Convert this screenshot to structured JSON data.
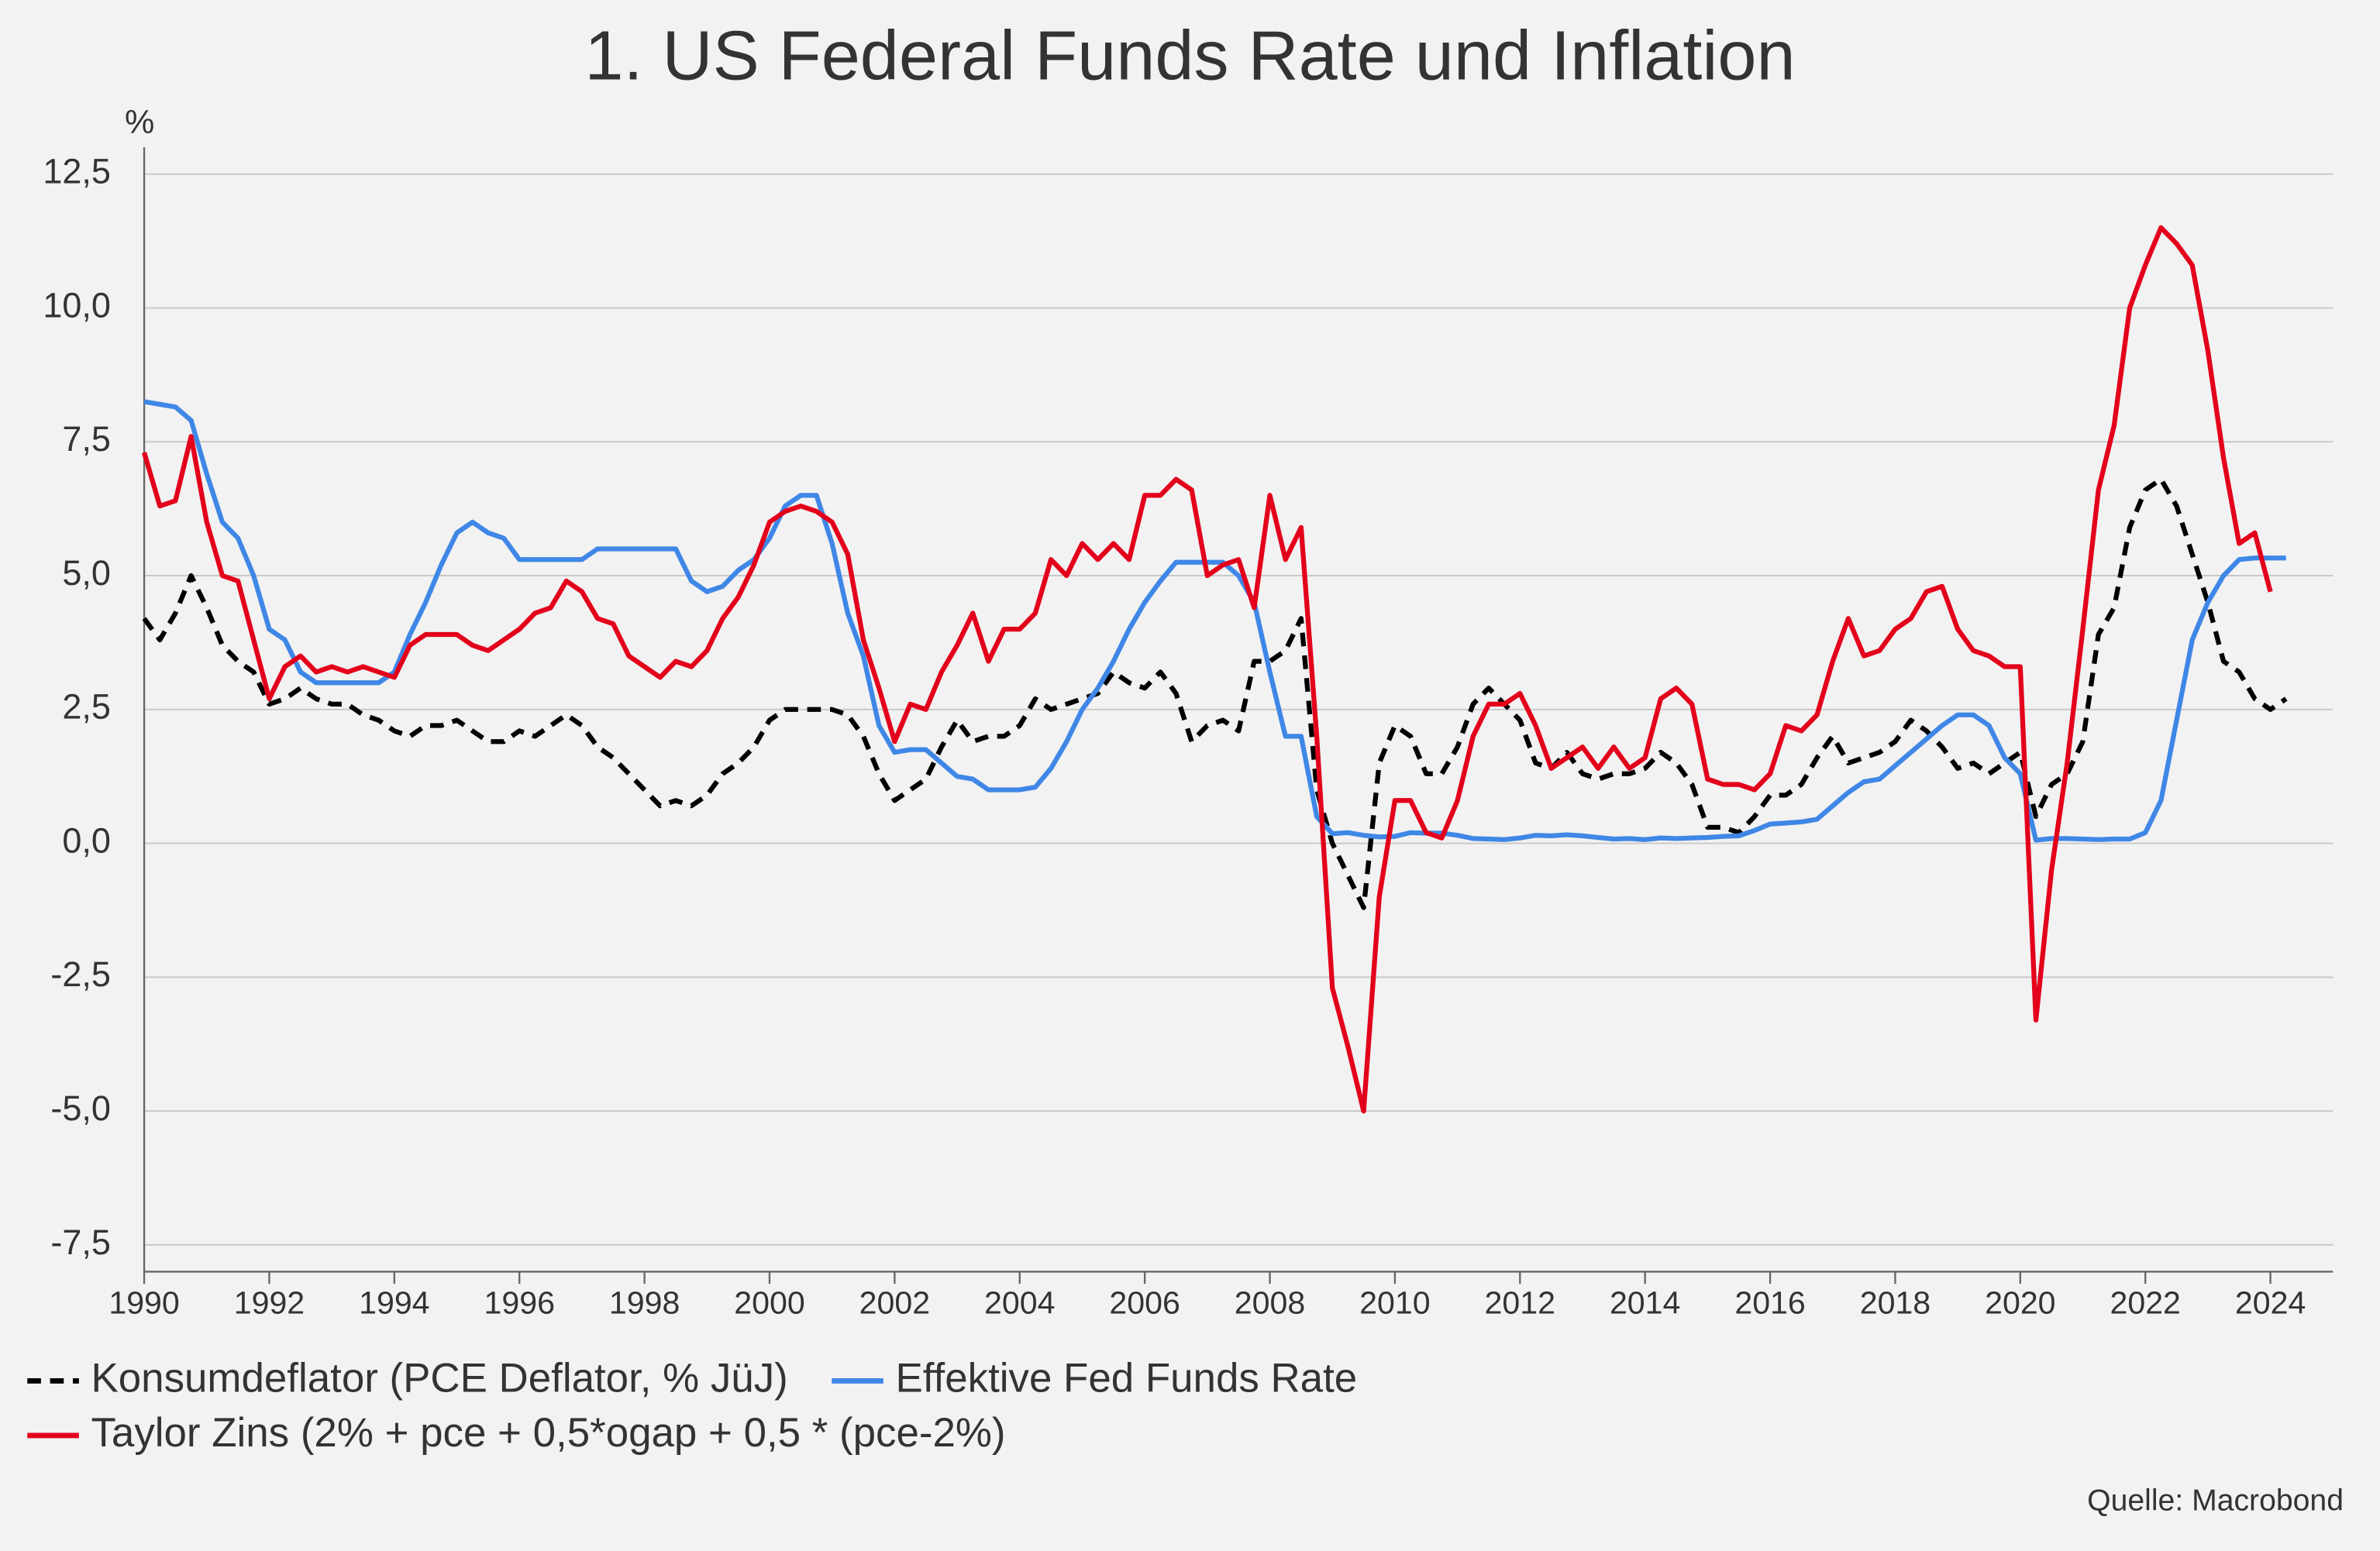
{
  "chart_data": {
    "type": "line",
    "title": "1. US Federal Funds Rate und Inflation",
    "y_unit": "%",
    "source": "Quelle: Macrobond",
    "x": [
      1990,
      1990.25,
      1990.5,
      1990.75,
      1991,
      1991.25,
      1991.5,
      1991.75,
      1992,
      1992.25,
      1992.5,
      1992.75,
      1993,
      1993.25,
      1993.5,
      1993.75,
      1994,
      1994.25,
      1994.5,
      1994.75,
      1995,
      1995.25,
      1995.5,
      1995.75,
      1996,
      1996.25,
      1996.5,
      1996.75,
      1997,
      1997.25,
      1997.5,
      1997.75,
      1998,
      1998.25,
      1998.5,
      1998.75,
      1999,
      1999.25,
      1999.5,
      1999.75,
      2000,
      2000.25,
      2000.5,
      2000.75,
      2001,
      2001.25,
      2001.5,
      2001.75,
      2002,
      2002.25,
      2002.5,
      2002.75,
      2003,
      2003.25,
      2003.5,
      2003.75,
      2004,
      2004.25,
      2004.5,
      2004.75,
      2005,
      2005.25,
      2005.5,
      2005.75,
      2006,
      2006.25,
      2006.5,
      2006.75,
      2007,
      2007.25,
      2007.5,
      2007.75,
      2008,
      2008.25,
      2008.5,
      2008.75,
      2009,
      2009.25,
      2009.5,
      2009.75,
      2010,
      2010.25,
      2010.5,
      2010.75,
      2011,
      2011.25,
      2011.5,
      2011.75,
      2012,
      2012.25,
      2012.5,
      2012.75,
      2013,
      2013.25,
      2013.5,
      2013.75,
      2014,
      2014.25,
      2014.5,
      2014.75,
      2015,
      2015.25,
      2015.5,
      2015.75,
      2016,
      2016.25,
      2016.5,
      2016.75,
      2017,
      2017.25,
      2017.5,
      2017.75,
      2018,
      2018.25,
      2018.5,
      2018.75,
      2019,
      2019.25,
      2019.5,
      2019.75,
      2020,
      2020.25,
      2020.5,
      2020.75,
      2021,
      2021.25,
      2021.5,
      2021.75,
      2022,
      2022.25,
      2022.5,
      2022.75,
      2023,
      2023.25,
      2023.5,
      2023.75,
      2024,
      2024.25
    ],
    "series": [
      {
        "name": "Konsumdeflator (PCE Deflator, % JüJ)",
        "color": "#000000",
        "style": "dashed",
        "values": [
          4.2,
          3.8,
          4.3,
          5.0,
          4.4,
          3.7,
          3.4,
          3.2,
          2.6,
          2.7,
          2.9,
          2.7,
          2.6,
          2.6,
          2.4,
          2.3,
          2.1,
          2.0,
          2.2,
          2.2,
          2.3,
          2.1,
          1.9,
          1.9,
          2.1,
          2.0,
          2.2,
          2.4,
          2.2,
          1.8,
          1.6,
          1.3,
          1.0,
          0.7,
          0.8,
          0.7,
          0.9,
          1.3,
          1.5,
          1.8,
          2.3,
          2.5,
          2.5,
          2.5,
          2.5,
          2.4,
          2.0,
          1.3,
          0.8,
          1.0,
          1.2,
          1.8,
          2.3,
          1.9,
          2.0,
          2.0,
          2.2,
          2.7,
          2.5,
          2.6,
          2.7,
          2.8,
          3.2,
          3.0,
          2.9,
          3.2,
          2.8,
          1.9,
          2.2,
          2.3,
          2.1,
          3.4,
          3.4,
          3.6,
          4.2,
          1.0,
          0.0,
          -0.6,
          -1.2,
          1.5,
          2.2,
          2.0,
          1.3,
          1.3,
          1.8,
          2.6,
          2.9,
          2.6,
          2.3,
          1.5,
          1.4,
          1.7,
          1.3,
          1.2,
          1.3,
          1.3,
          1.4,
          1.7,
          1.5,
          1.1,
          0.3,
          0.3,
          0.2,
          0.5,
          0.9,
          0.9,
          1.1,
          1.6,
          2.0,
          1.5,
          1.6,
          1.7,
          1.9,
          2.3,
          2.1,
          1.8,
          1.4,
          1.5,
          1.3,
          1.5,
          1.7,
          0.5,
          1.1,
          1.3,
          1.9,
          3.9,
          4.4,
          5.9,
          6.6,
          6.8,
          6.3,
          5.4,
          4.5,
          3.4,
          3.2,
          2.7,
          2.5,
          2.7
        ]
      },
      {
        "name": "Effektive Fed Funds Rate",
        "color": "#3f87e6",
        "style": "solid",
        "values": [
          8.25,
          8.2,
          8.15,
          7.9,
          6.9,
          6.0,
          5.7,
          5.0,
          4.0,
          3.8,
          3.2,
          3.0,
          3.0,
          3.0,
          3.0,
          3.0,
          3.2,
          3.9,
          4.5,
          5.2,
          5.8,
          6.0,
          5.8,
          5.7,
          5.3,
          5.3,
          5.3,
          5.3,
          5.3,
          5.5,
          5.5,
          5.5,
          5.5,
          5.5,
          5.5,
          4.9,
          4.7,
          4.8,
          5.1,
          5.3,
          5.7,
          6.3,
          6.5,
          6.5,
          5.6,
          4.3,
          3.5,
          2.2,
          1.7,
          1.75,
          1.75,
          1.5,
          1.25,
          1.2,
          1.0,
          1.0,
          1.0,
          1.05,
          1.4,
          1.9,
          2.5,
          2.9,
          3.4,
          4.0,
          4.5,
          4.9,
          5.25,
          5.25,
          5.25,
          5.25,
          5.0,
          4.5,
          3.2,
          2.0,
          2.0,
          0.5,
          0.18,
          0.2,
          0.15,
          0.12,
          0.13,
          0.2,
          0.19,
          0.19,
          0.15,
          0.09,
          0.08,
          0.07,
          0.1,
          0.15,
          0.14,
          0.16,
          0.14,
          0.11,
          0.08,
          0.09,
          0.07,
          0.1,
          0.09,
          0.1,
          0.11,
          0.13,
          0.14,
          0.24,
          0.36,
          0.38,
          0.4,
          0.45,
          0.7,
          0.95,
          1.15,
          1.2,
          1.45,
          1.7,
          1.95,
          2.2,
          2.4,
          2.4,
          2.2,
          1.6,
          1.3,
          0.06,
          0.09,
          0.09,
          0.08,
          0.07,
          0.08,
          0.08,
          0.2,
          0.8,
          2.3,
          3.8,
          4.5,
          5.0,
          5.3,
          5.33,
          5.33,
          5.33
        ]
      },
      {
        "name": "Taylor Zins (2% + pce + 0,5*ogap + 0,5 * (pce-2%)",
        "color": "#e3001b",
        "style": "solid",
        "values": [
          7.3,
          6.3,
          6.4,
          7.6,
          6.0,
          5.0,
          4.9,
          3.8,
          2.7,
          3.3,
          3.5,
          3.2,
          3.3,
          3.2,
          3.3,
          3.2,
          3.1,
          3.7,
          3.9,
          3.9,
          3.9,
          3.7,
          3.6,
          3.8,
          4.0,
          4.3,
          4.4,
          4.9,
          4.7,
          4.2,
          4.1,
          3.5,
          3.3,
          3.1,
          3.4,
          3.3,
          3.6,
          4.2,
          4.6,
          5.2,
          6.0,
          6.2,
          6.3,
          6.2,
          6.0,
          5.4,
          3.8,
          2.9,
          1.9,
          2.6,
          2.5,
          3.2,
          3.7,
          4.3,
          3.4,
          4.0,
          4.0,
          4.3,
          5.3,
          5.0,
          5.6,
          5.3,
          5.6,
          5.3,
          6.5,
          6.5,
          6.8,
          6.6,
          5.0,
          5.2,
          5.3,
          4.4,
          6.5,
          5.3,
          5.9,
          2.0,
          -2.7,
          -3.8,
          -5.0,
          -1.0,
          0.8,
          0.8,
          0.2,
          0.1,
          0.8,
          2.0,
          2.6,
          2.6,
          2.8,
          2.2,
          1.4,
          1.6,
          1.8,
          1.4,
          1.8,
          1.4,
          1.6,
          2.7,
          2.9,
          2.6,
          1.2,
          1.1,
          1.1,
          1.0,
          1.3,
          2.2,
          2.1,
          2.4,
          3.4,
          4.2,
          3.5,
          3.6,
          4.0,
          4.2,
          4.7,
          4.8,
          4.0,
          3.6,
          3.5,
          3.3,
          3.3,
          -3.3,
          -0.5,
          1.5,
          4.0,
          6.6,
          7.8,
          10.0,
          10.8,
          11.5,
          11.2,
          10.8,
          9.2,
          7.2,
          5.6,
          5.8,
          4.7,
          null
        ]
      }
    ],
    "xlim": [
      1990,
      2025
    ],
    "xticks": [
      1990,
      1992,
      1994,
      1996,
      1998,
      2000,
      2002,
      2004,
      2006,
      2008,
      2010,
      2012,
      2014,
      2016,
      2018,
      2020,
      2022,
      2024
    ],
    "ylim": [
      -8,
      13
    ],
    "yticks": [
      {
        "value": -7.5,
        "label": "-7,5"
      },
      {
        "value": -5,
        "label": "-5,0"
      },
      {
        "value": -2.5,
        "label": "-2,5"
      },
      {
        "value": 0,
        "label": "0,0"
      },
      {
        "value": 2.5,
        "label": "2,5"
      },
      {
        "value": 5,
        "label": "5,0"
      },
      {
        "value": 7.5,
        "label": "7,5"
      },
      {
        "value": 10,
        "label": "10,0"
      },
      {
        "value": 12.5,
        "label": "12,5"
      }
    ],
    "grid": true
  }
}
